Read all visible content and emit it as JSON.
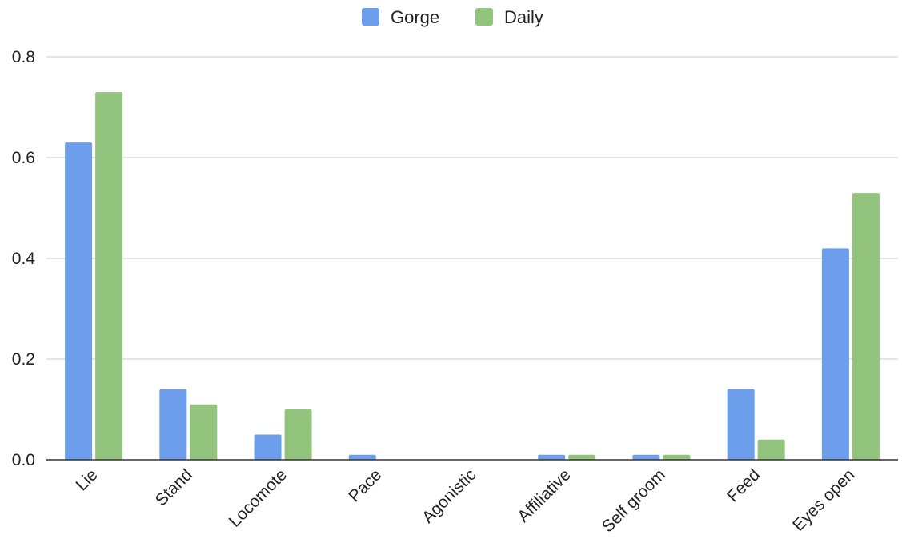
{
  "chart_data": {
    "type": "bar",
    "title": "",
    "xlabel": "",
    "ylabel": "",
    "categories": [
      "Lie",
      "Stand",
      "Locomote",
      "Pace",
      "Agonistic",
      "Affiliative",
      "Self groom",
      "Feed",
      "Eyes open"
    ],
    "series": [
      {
        "name": "Gorge",
        "color": "#6d9eeb",
        "values": [
          0.63,
          0.14,
          0.05,
          0.01,
          0.0,
          0.01,
          0.01,
          0.14,
          0.42
        ]
      },
      {
        "name": "Daily",
        "color": "#93c47d",
        "values": [
          0.73,
          0.11,
          0.1,
          0.0,
          0.0,
          0.01,
          0.01,
          0.04,
          0.53
        ]
      }
    ],
    "ylim": [
      0,
      0.8
    ],
    "yticks": [
      "0.0",
      "0.2",
      "0.4",
      "0.6",
      "0.8"
    ],
    "grid": true,
    "legend": "top-center"
  }
}
